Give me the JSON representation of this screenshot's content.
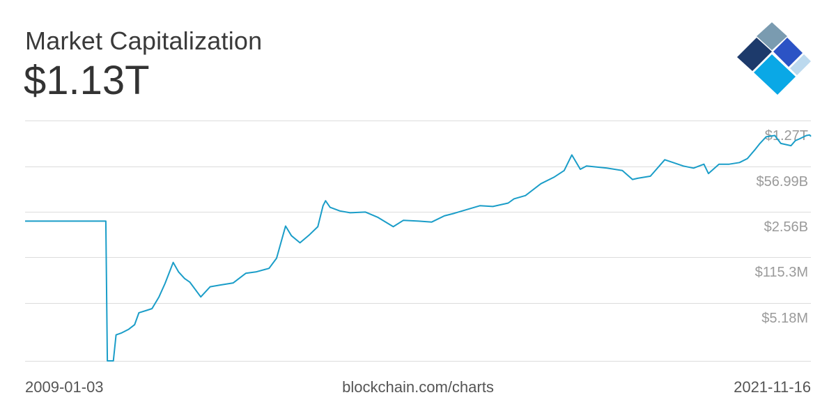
{
  "header": {
    "title": "Market Capitalization",
    "current_value": "$1.13T"
  },
  "footer": {
    "start_date": "2009-01-03",
    "source": "blockchain.com/charts",
    "end_date": "2021-11-16"
  },
  "brand": {
    "logo_icon": "blockchain-diamond-logo-icon",
    "colors": [
      "#7a9bb0",
      "#1d3a6b",
      "#2b53c5",
      "#bcd9ee",
      "#0aa8e6"
    ]
  },
  "chart_data": {
    "type": "line",
    "title": "Market Capitalization",
    "scale": "log",
    "line_color": "#1a9dc8",
    "grid": true,
    "y_ticks": [
      {
        "label": "$1.27T",
        "value": 1270000000000.0
      },
      {
        "label": "$56.99B",
        "value": 56990000000.0
      },
      {
        "label": "$2.56B",
        "value": 2560000000.0
      },
      {
        "label": "$115.3M",
        "value": 115300000.0
      },
      {
        "label": "$5.18M",
        "value": 5180000.0
      }
    ],
    "ylim": [
      232000.0,
      28300000000000.0
    ],
    "x_range": [
      "2009-01-03",
      "2021-11-16"
    ],
    "series": [
      {
        "values": [
          [
            "2009-01-03",
            3500000000.0
          ],
          [
            "2010-05-01",
            3500000000.0
          ],
          [
            "2010-05-10",
            250000.0
          ],
          [
            "2010-06-15",
            240000.0
          ],
          [
            "2010-07-01",
            1500000.0
          ],
          [
            "2010-08-01",
            1700000.0
          ],
          [
            "2010-09-15",
            2200000.0
          ],
          [
            "2010-10-20",
            3000000.0
          ],
          [
            "2010-11-15",
            6800000.0
          ],
          [
            "2010-12-31",
            8000000.0
          ],
          [
            "2011-02-01",
            9000000.0
          ],
          [
            "2011-03-15",
            20000000.0
          ],
          [
            "2011-04-20",
            50000000.0
          ],
          [
            "2011-06-08",
            210000000.0
          ],
          [
            "2011-07-10",
            110000000.0
          ],
          [
            "2011-08-15",
            70000000.0
          ],
          [
            "2011-09-15",
            55000000.0
          ],
          [
            "2011-11-20",
            20000000.0
          ],
          [
            "2012-01-15",
            40000000.0
          ],
          [
            "2012-03-15",
            45000000.0
          ],
          [
            "2012-06-01",
            52000000.0
          ],
          [
            "2012-08-15",
            100000000.0
          ],
          [
            "2012-10-15",
            110000000.0
          ],
          [
            "2013-01-01",
            140000000.0
          ],
          [
            "2013-02-15",
            280000000.0
          ],
          [
            "2013-04-10",
            2500000000.0
          ],
          [
            "2013-05-15",
            1300000000.0
          ],
          [
            "2013-07-05",
            800000000.0
          ],
          [
            "2013-09-01",
            1400000000.0
          ],
          [
            "2013-10-20",
            2400000000.0
          ],
          [
            "2013-11-20",
            10000000000.0
          ],
          [
            "2013-12-05",
            14000000000.0
          ],
          [
            "2014-01-01",
            9000000000.0
          ],
          [
            "2014-03-01",
            7000000000.0
          ],
          [
            "2014-05-01",
            6200000000.0
          ],
          [
            "2014-08-01",
            6500000000.0
          ],
          [
            "2014-10-15",
            4500000000.0
          ],
          [
            "2015-01-14",
            2400000000.0
          ],
          [
            "2015-03-15",
            3700000000.0
          ],
          [
            "2015-06-15",
            3500000000.0
          ],
          [
            "2015-09-01",
            3300000000.0
          ],
          [
            "2015-11-15",
            5000000000.0
          ],
          [
            "2016-01-15",
            6000000000.0
          ],
          [
            "2016-06-15",
            10000000000.0
          ],
          [
            "2016-09-01",
            9500000000.0
          ],
          [
            "2016-12-01",
            12000000000.0
          ],
          [
            "2017-01-05",
            16000000000.0
          ],
          [
            "2017-03-15",
            20000000000.0
          ],
          [
            "2017-06-15",
            45000000000.0
          ],
          [
            "2017-09-01",
            70000000000.0
          ],
          [
            "2017-11-01",
            110000000000.0
          ],
          [
            "2017-12-17",
            320000000000.0
          ],
          [
            "2018-02-06",
            120000000000.0
          ],
          [
            "2018-03-15",
            150000000000.0
          ],
          [
            "2018-05-15",
            140000000000.0
          ],
          [
            "2018-07-15",
            130000000000.0
          ],
          [
            "2018-10-15",
            110000000000.0
          ],
          [
            "2018-12-15",
            60000000000.0
          ],
          [
            "2019-01-15",
            65000000000.0
          ],
          [
            "2019-04-01",
            75000000000.0
          ],
          [
            "2019-06-26",
            230000000000.0
          ],
          [
            "2019-08-15",
            190000000000.0
          ],
          [
            "2019-10-15",
            150000000000.0
          ],
          [
            "2019-12-15",
            130000000000.0
          ],
          [
            "2020-02-15",
            170000000000.0
          ],
          [
            "2020-03-13",
            90000000000.0
          ],
          [
            "2020-05-15",
            170000000000.0
          ],
          [
            "2020-07-15",
            170000000000.0
          ],
          [
            "2020-09-15",
            190000000000.0
          ],
          [
            "2020-11-01",
            250000000000.0
          ],
          [
            "2020-12-15",
            450000000000.0
          ],
          [
            "2021-01-15",
            700000000000.0
          ],
          [
            "2021-02-21",
            1100000000000.0
          ],
          [
            "2021-04-14",
            1200000000000.0
          ],
          [
            "2021-05-20",
            700000000000.0
          ],
          [
            "2021-07-20",
            600000000000.0
          ],
          [
            "2021-08-15",
            850000000000.0
          ],
          [
            "2021-09-07",
            950000000000.0
          ],
          [
            "2021-10-20",
            1200000000000.0
          ],
          [
            "2021-11-08",
            1250000000000.0
          ],
          [
            "2021-11-16",
            1130000000000.0
          ]
        ]
      }
    ]
  }
}
